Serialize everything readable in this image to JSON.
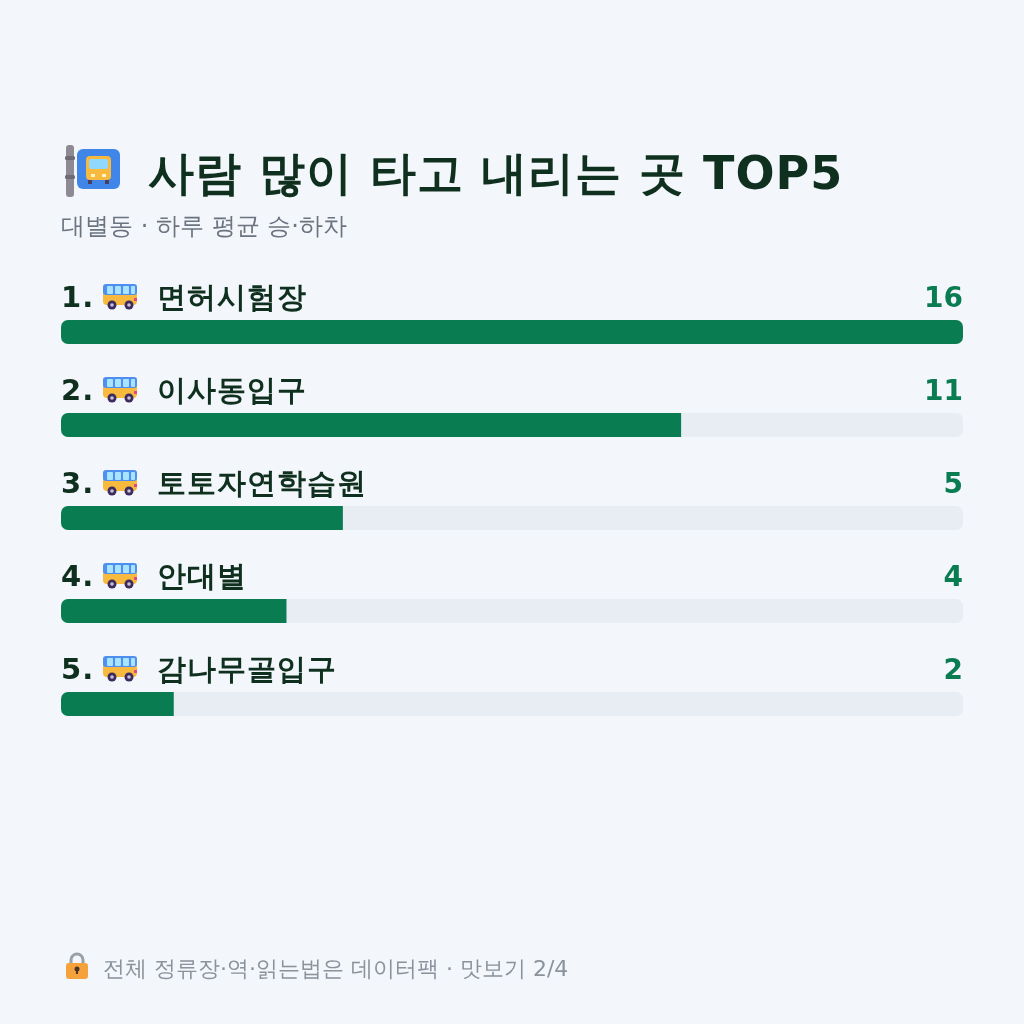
{
  "chart_data": {
    "type": "bar",
    "orientation": "horizontal",
    "title": "사람 많이 타고 내리는 곳 TOP5",
    "subtitle": "대별동 · 하루 평균 승·하차",
    "categories": [
      "1. 면허시험장",
      "2. 이사동입구",
      "3. 토토자연학습원",
      "4. 안대별",
      "5. 감나무골입구"
    ],
    "values": [
      16,
      11,
      5,
      4,
      2
    ],
    "color": "#0a7c52",
    "data_labels": true,
    "annotations": [
      "전체 정류장·역·읽는법은 데이터팩 · 맛보기 2/4"
    ]
  }
}
